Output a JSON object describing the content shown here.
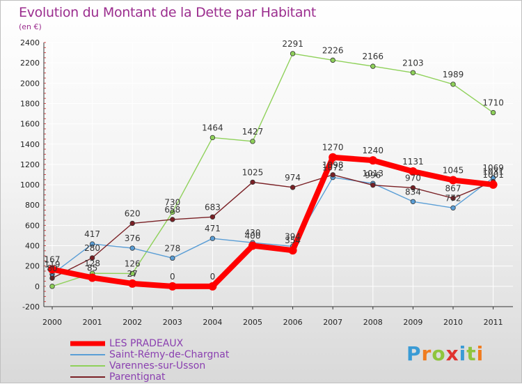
{
  "header": {
    "title": "Evolution du Montant de la Dette par Habitant",
    "unit": "(en €)"
  },
  "logo": {
    "text": "Proxiti",
    "colors": [
      "#3a9bd5",
      "#f07c1f",
      "#8fc53d",
      "#e0332f",
      "#3a9bd5",
      "#8fc53d",
      "#f07c1f"
    ]
  },
  "chart_data": {
    "type": "line",
    "title": "Evolution du Montant de la Dette par Habitant",
    "ylabel": "(en €)",
    "x": [
      "2000",
      "2001",
      "2002",
      "2003",
      "2004",
      "2005",
      "2006",
      "2007",
      "2008",
      "2009",
      "2010",
      "2011"
    ],
    "ylim": [
      -200,
      2400
    ],
    "yticks": [
      -200,
      0,
      200,
      400,
      600,
      800,
      1000,
      1200,
      1400,
      1600,
      1800,
      2000,
      2200,
      2400
    ],
    "grid": true,
    "legend_position": "bottom-left",
    "series": [
      {
        "name": "LES PRADEAUX",
        "color": "#ff0000",
        "values": [
          167,
          85,
          27,
          0,
          0,
          400,
          354,
          1270,
          1240,
          1131,
          1045,
          1001
        ]
      },
      {
        "name": "Saint-Rémy-de-Chargnat",
        "color": "#5a9ed6",
        "values": [
          119,
          417,
          376,
          278,
          471,
          430,
          394,
          1072,
          1013,
          834,
          772,
          1069
        ]
      },
      {
        "name": "Varennes-sur-Usson",
        "color": "#8fd15a",
        "values": [
          0,
          128,
          126,
          730,
          1464,
          1427,
          2291,
          2226,
          2166,
          2103,
          1989,
          1710
        ]
      },
      {
        "name": "Parentignat",
        "color": "#7a2025",
        "values": [
          80,
          280,
          620,
          658,
          683,
          1025,
          974,
          1098,
          996,
          970,
          867,
          1031
        ]
      }
    ]
  }
}
